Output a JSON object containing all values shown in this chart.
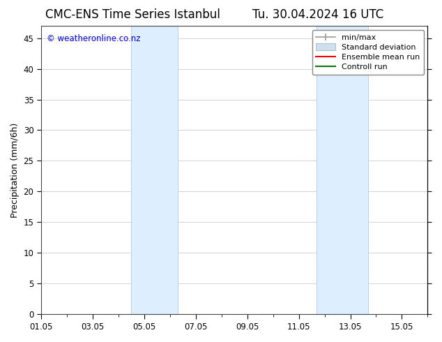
{
  "title_left": "CMC-ENS Time Series Istanbul",
  "title_right": "Tu. 30.04.2024 16 UTC",
  "ylabel": "Precipitation (mm/6h)",
  "xlabel": "",
  "ylim": [
    0,
    47
  ],
  "yticks": [
    0,
    5,
    10,
    15,
    20,
    25,
    30,
    35,
    40,
    45
  ],
  "xtick_labels": [
    "01.05",
    "03.05",
    "05.05",
    "07.05",
    "09.05",
    "11.05",
    "13.05",
    "15.05"
  ],
  "xtick_positions": [
    0,
    2,
    4,
    6,
    8,
    10,
    12,
    14
  ],
  "xlim": [
    0,
    15
  ],
  "shaded_bands": [
    {
      "x_start": 3.5,
      "x_end": 5.3
    },
    {
      "x_start": 10.7,
      "x_end": 12.7
    }
  ],
  "shaded_color": "#ddeeff",
  "shaded_edge_color": "#b8d0e8",
  "bg_color": "#ffffff",
  "grid_color": "#cccccc",
  "copyright_text": "© weatheronline.co.nz",
  "copyright_color": "#0000cc",
  "legend_items": [
    {
      "label": "min/max",
      "color": "#aaaaaa",
      "lw": 1.5,
      "style": "line_with_caps"
    },
    {
      "label": "Standard deviation",
      "color": "#cce0f0",
      "lw": 8,
      "style": "thick"
    },
    {
      "label": "Ensemble mean run",
      "color": "#ff0000",
      "lw": 1.5,
      "style": "line"
    },
    {
      "label": "Controll run",
      "color": "#007700",
      "lw": 1.5,
      "style": "line"
    }
  ],
  "title_fontsize": 12,
  "axis_label_fontsize": 9,
  "tick_fontsize": 8.5,
  "legend_fontsize": 8,
  "copyright_fontsize": 8.5
}
